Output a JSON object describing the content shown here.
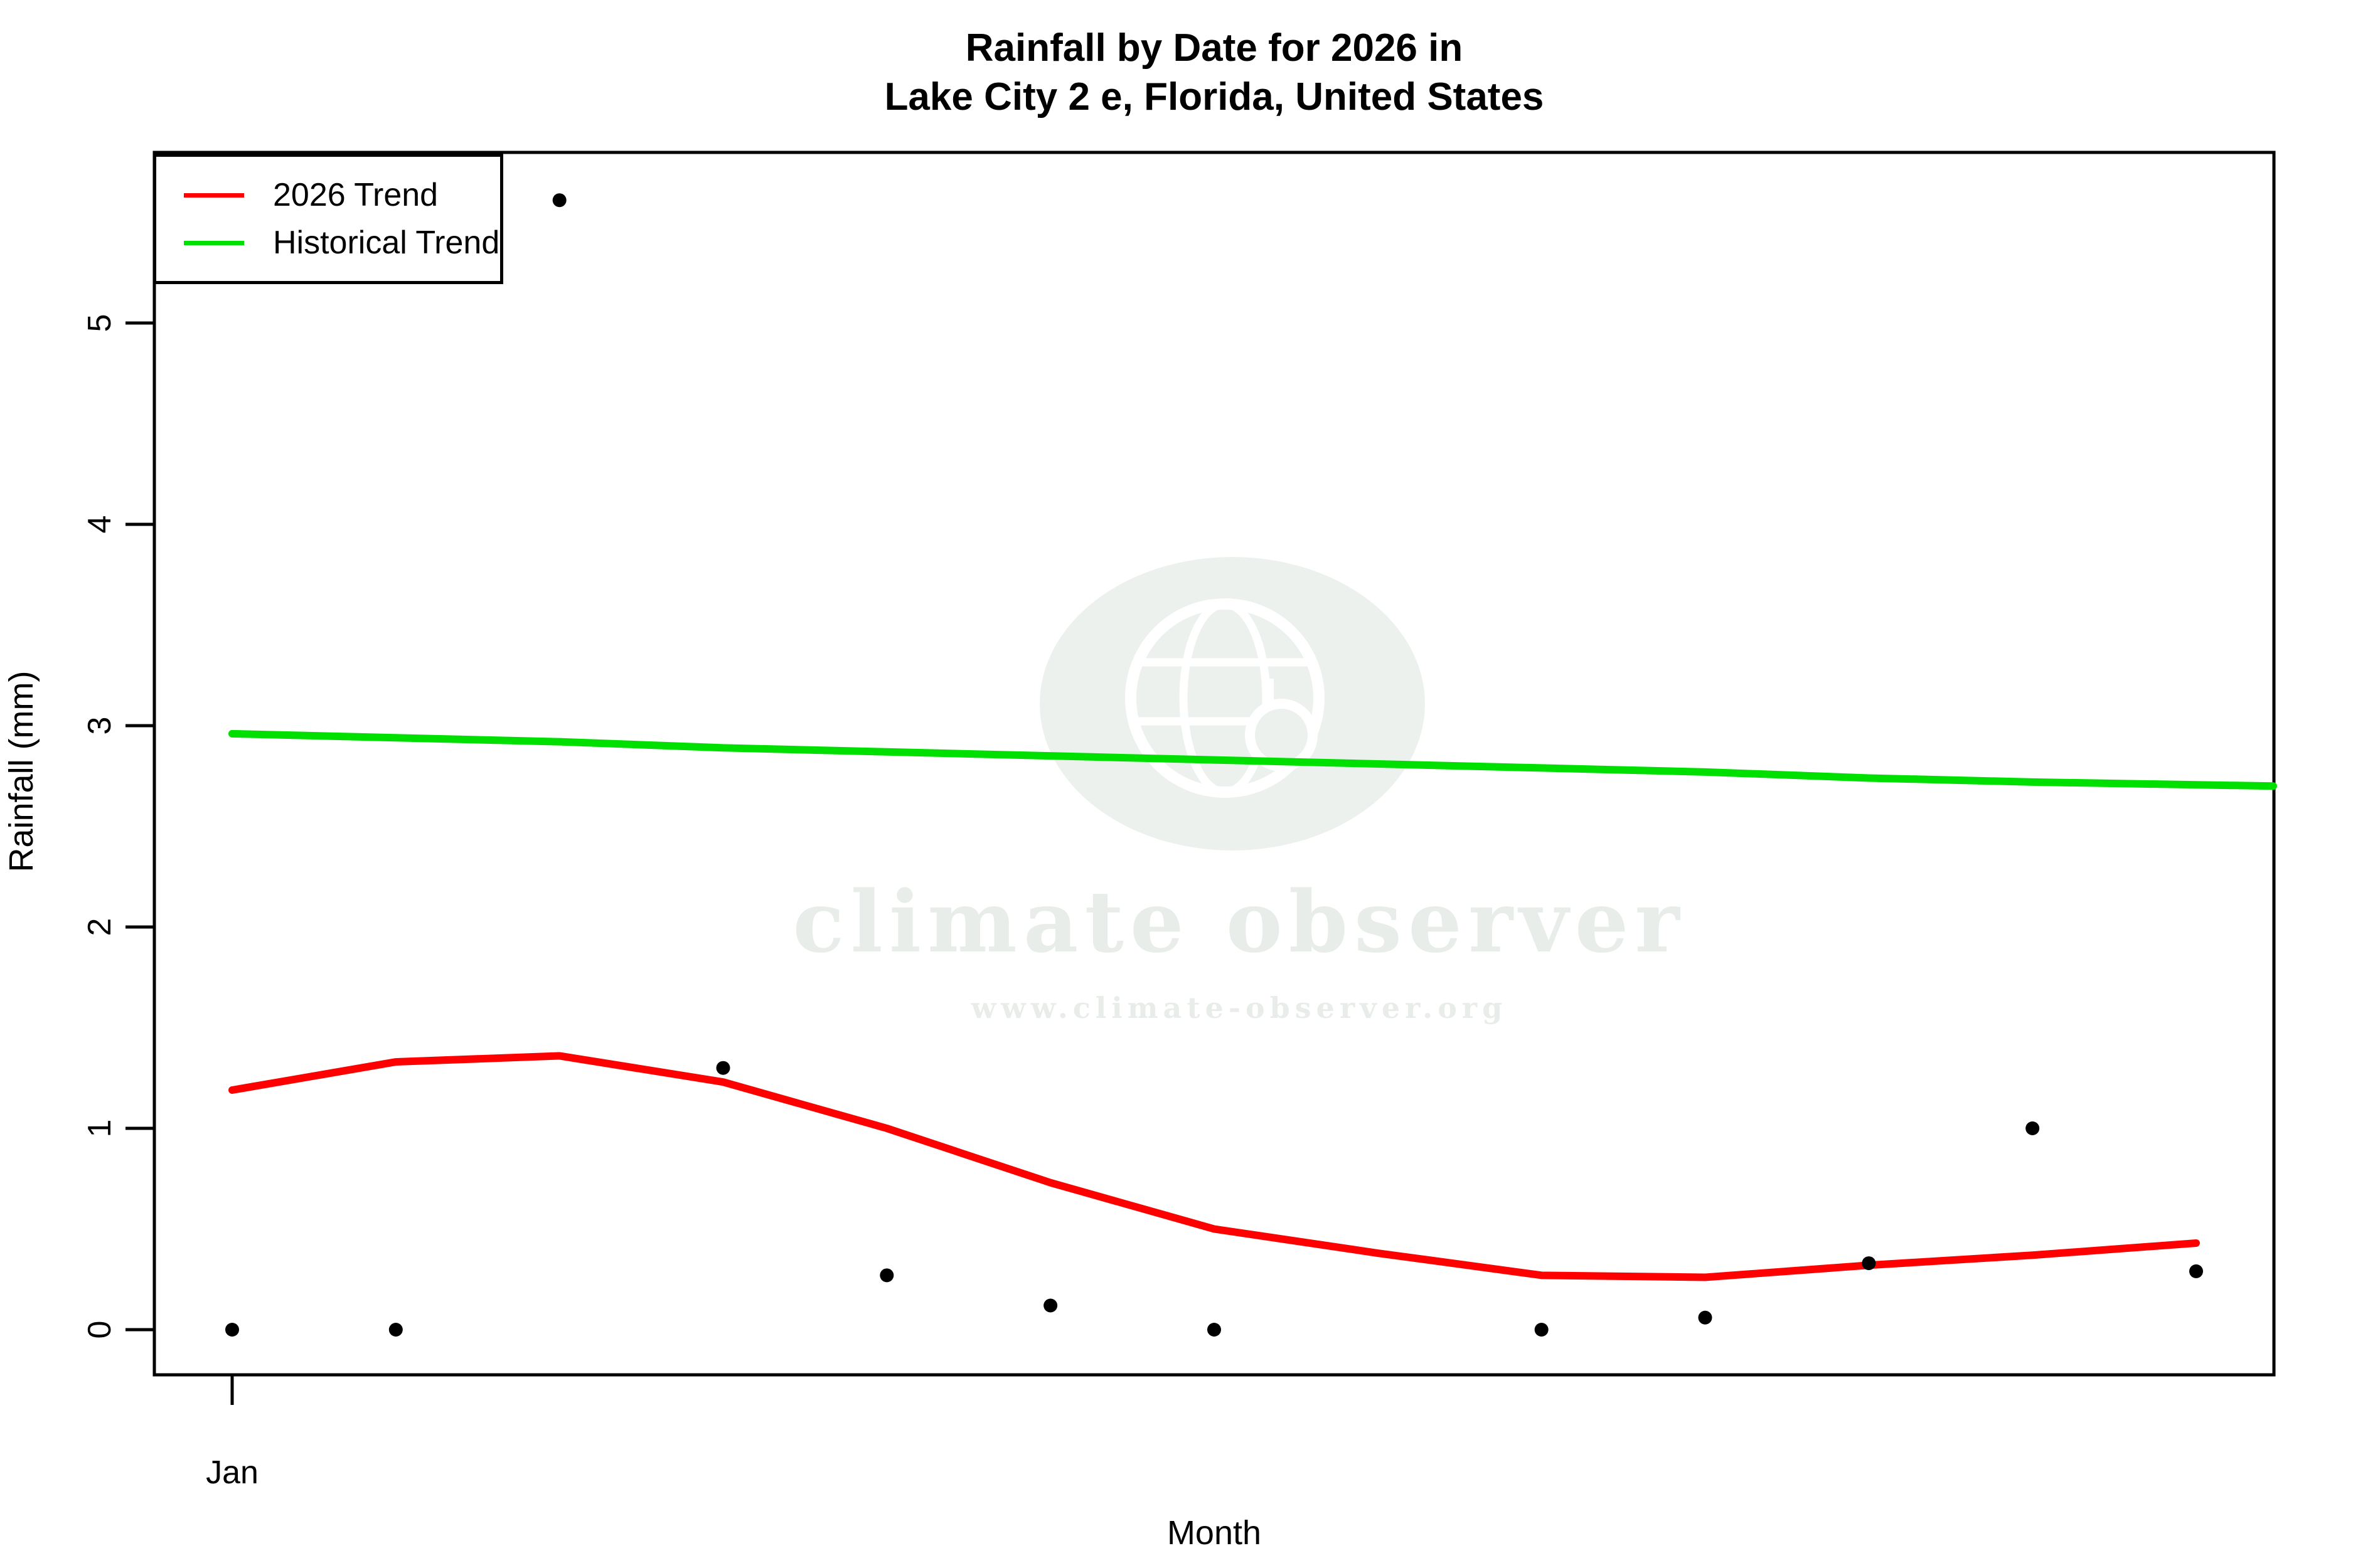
{
  "title": {
    "line1": "Rainfall by Date for 2026 in",
    "line2": "Lake City 2 e, Florida, United States"
  },
  "axes": {
    "y_label": "Rainfall (mm)",
    "x_label": "Month",
    "y_ticks": [
      0,
      1,
      2,
      3,
      4,
      5
    ],
    "x_tick_labels": [
      "Jan"
    ]
  },
  "legend": [
    {
      "label": "2026 Trend",
      "color": "#FF0000"
    },
    {
      "label": "Historical Trend",
      "color": "#00E000"
    }
  ],
  "watermark": {
    "brand": "climate observer",
    "url": "www.climate-observer.org",
    "icon": "globe-magnifier-icon",
    "color": "#E9EDE9"
  },
  "chart_data": {
    "type": "scatter",
    "title": "Rainfall by Date for 2026 in Lake City 2 e, Florida, United States",
    "xlabel": "Month",
    "ylabel": "Rainfall (mm)",
    "x_note": "13 evenly spaced dates across 2026; only January tick labeled",
    "x_index": [
      0,
      1,
      2,
      3,
      4,
      5,
      6,
      7,
      8,
      9,
      10,
      11,
      12
    ],
    "x_tick": {
      "index": 0,
      "label": "Jan"
    },
    "ylim": [
      -0.22,
      5.85
    ],
    "y_ticks": [
      0,
      1,
      2,
      3,
      4,
      5
    ],
    "grid": false,
    "legend_position": "top-left",
    "point_color": "#000000",
    "points": [
      0,
      0,
      5.61,
      1.3,
      0.27,
      0.12,
      0,
      null,
      0,
      0.06,
      0.33,
      1.0,
      0.29
    ],
    "series": [
      {
        "name": "2026 Trend",
        "color": "#FF0000",
        "values": [
          1.19,
          1.33,
          1.36,
          1.23,
          1.0,
          0.73,
          0.5,
          0.38,
          0.27,
          0.26,
          0.32,
          0.37,
          0.43
        ]
      },
      {
        "name": "Historical Trend",
        "color": "#00E000",
        "values": [
          2.96,
          2.94,
          2.92,
          2.89,
          2.87,
          2.85,
          2.83,
          2.81,
          2.79,
          2.77,
          2.74,
          2.72,
          2.7
        ]
      }
    ]
  }
}
